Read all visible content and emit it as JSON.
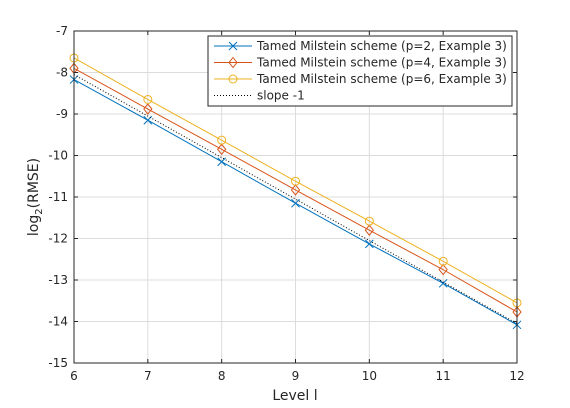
{
  "chart_data": {
    "type": "line",
    "xlabel": "Level l",
    "ylabel": {
      "prefix": "log",
      "subscript": "2",
      "suffix": "(RMSE)"
    },
    "xlim": [
      6,
      12
    ],
    "ylim": [
      -15,
      -7
    ],
    "xticks": [
      6,
      7,
      8,
      9,
      10,
      11,
      12
    ],
    "yticks": [
      -15,
      -14,
      -13,
      -12,
      -11,
      -10,
      -9,
      -8,
      -7
    ],
    "grid": true,
    "legend_position": "top-right",
    "x": [
      6,
      7,
      8,
      9,
      10,
      11,
      12
    ],
    "series": [
      {
        "name": "Tamed Milstein scheme (p=2, Example 3)",
        "color": "#0072BD",
        "marker": "x",
        "line": "solid",
        "values": [
          -8.17,
          -9.15,
          -10.15,
          -11.15,
          -12.13,
          -13.08,
          -14.08
        ]
      },
      {
        "name": "Tamed Milstein scheme (p=4, Example 3)",
        "color": "#D95319",
        "marker": "diamond",
        "line": "solid",
        "values": [
          -7.9,
          -8.88,
          -9.85,
          -10.83,
          -11.8,
          -12.75,
          -13.77
        ]
      },
      {
        "name": "Tamed Milstein scheme (p=6, Example 3)",
        "color": "#EDB120",
        "marker": "circle",
        "line": "solid",
        "values": [
          -7.65,
          -8.65,
          -9.63,
          -10.62,
          -11.58,
          -12.55,
          -13.55
        ]
      },
      {
        "name": "slope -1",
        "color": "#000000",
        "marker": "none",
        "line": "dotted",
        "values": [
          -8.05,
          -9.05,
          -10.05,
          -11.05,
          -12.05,
          -13.05,
          -14.05
        ]
      }
    ]
  }
}
